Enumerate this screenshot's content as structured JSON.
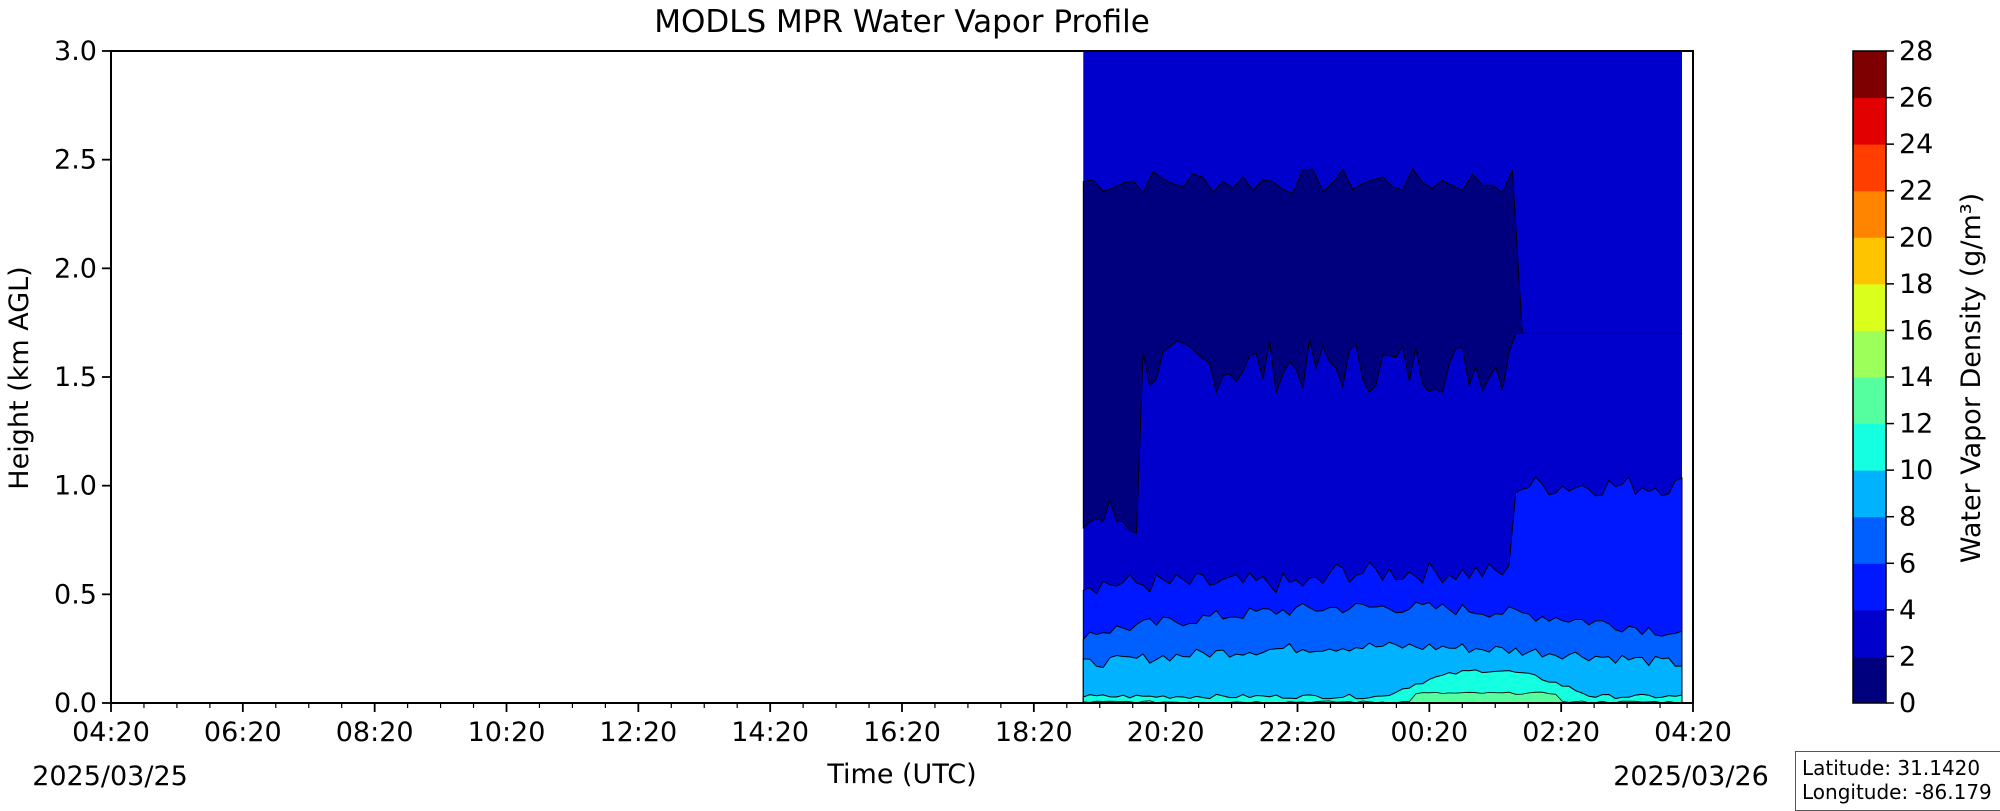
{
  "chart_data": {
    "type": "heatmap",
    "title": "MODLS MPR Water Vapor Profile",
    "xlabel": "Time (UTC)",
    "ylabel": "Height (km AGL)",
    "x_tick_labels": [
      "04:20",
      "06:20",
      "08:20",
      "10:20",
      "12:20",
      "14:20",
      "16:20",
      "18:20",
      "20:20",
      "22:20",
      "00:20",
      "02:20",
      "04:20"
    ],
    "x_range": [
      "2025/03/25 04:20",
      "2025/03/26 04:20"
    ],
    "date_start": "2025/03/25",
    "date_end": "2025/03/26",
    "ylim": [
      0,
      3.0
    ],
    "y_ticks": [
      "0.0",
      "0.5",
      "1.0",
      "1.5",
      "2.0",
      "2.5",
      "3.0"
    ],
    "data_extent_x": [
      "2025/03/25 19:05",
      "2025/03/26 04:10"
    ],
    "colorbar": {
      "label": "Water Vapor Density (g/m³)",
      "ticks": [
        0,
        2,
        4,
        6,
        8,
        10,
        12,
        14,
        16,
        18,
        20,
        22,
        24,
        26,
        28
      ],
      "colors": [
        "#00007f",
        "#0000cd",
        "#0018ff",
        "#0060ff",
        "#00b2ff",
        "#15ffe1",
        "#55ff9f",
        "#9cff5a",
        "#dbff1c",
        "#ffc400",
        "#ff8400",
        "#ff3e00",
        "#e30000",
        "#7f0000"
      ]
    },
    "layers": [
      {
        "range": "2-4",
        "color": "#0000cd",
        "height_km": [
          0.55,
          3.0
        ]
      },
      {
        "range": "0-2",
        "color": "#00007f",
        "height_km": [
          1.4,
          2.45
        ],
        "note_visible": false
      },
      {
        "range": "4-6",
        "color": "#0018ff",
        "height_km": [
          0.3,
          0.6
        ]
      },
      {
        "range": "6-8",
        "color": "#0060ff",
        "height_km": [
          0.15,
          0.4
        ]
      },
      {
        "range": "8-10",
        "color": "#00b2ff",
        "height_km": [
          0.03,
          0.25
        ]
      },
      {
        "range": "10-12",
        "color": "#15ffe1",
        "height_km": [
          0.0,
          0.15
        ]
      },
      {
        "range": "12-14",
        "color": "#55ff9f",
        "height_km": [
          0.0,
          0.05
        ]
      }
    ],
    "grid": false,
    "legend": "colorbar-right"
  },
  "info": {
    "latitude": "Latitude: 31.1420",
    "longitude": "Longitude: -86.179"
  }
}
